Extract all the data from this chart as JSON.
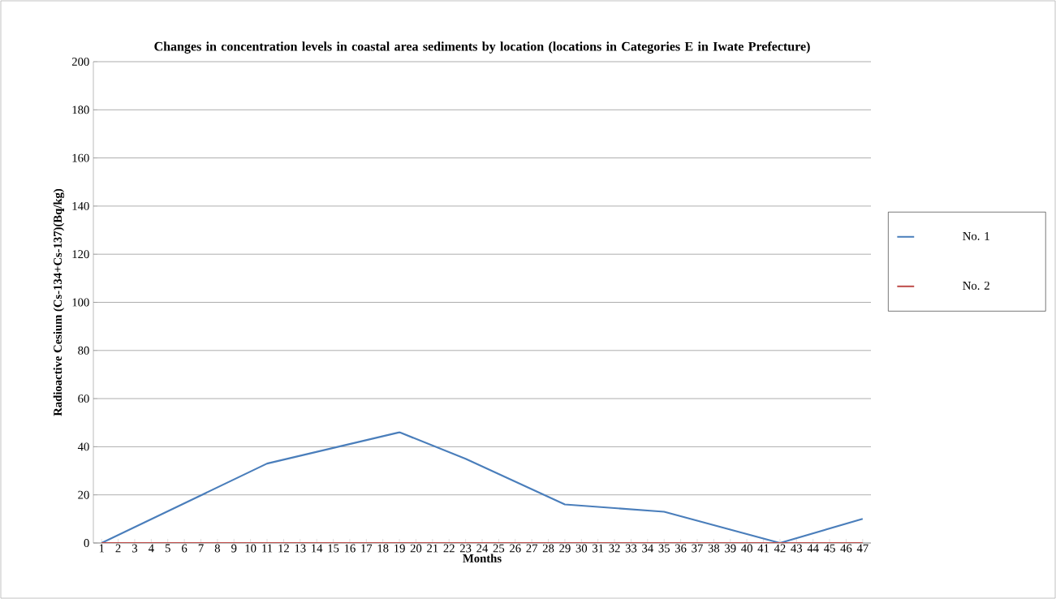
{
  "chart_data": {
    "type": "line",
    "title": "Changes in concentration levels in coastal area sediments by location (locations in Categories E in Iwate Prefecture)",
    "xlabel": "Months",
    "ylabel": "Radioactive Cesium (Cs-134+Cs-137)(Bq/kg)",
    "categories": [
      "1",
      "2",
      "3",
      "4",
      "5",
      "6",
      "7",
      "8",
      "9",
      "10",
      "11",
      "12",
      "13",
      "14",
      "15",
      "16",
      "17",
      "18",
      "19",
      "20",
      "21",
      "22",
      "23",
      "24",
      "25",
      "26",
      "27",
      "28",
      "29",
      "30",
      "31",
      "32",
      "33",
      "34",
      "35",
      "36",
      "37",
      "38",
      "39",
      "40",
      "41",
      "42",
      "43",
      "44",
      "45",
      "46",
      "47"
    ],
    "series": [
      {
        "name": "No. 1",
        "color": "#4a7ebb",
        "values": [
          0,
          null,
          null,
          null,
          null,
          null,
          null,
          null,
          null,
          null,
          33,
          null,
          null,
          null,
          null,
          null,
          null,
          null,
          46,
          null,
          null,
          null,
          35,
          null,
          null,
          null,
          null,
          null,
          16,
          null,
          null,
          null,
          null,
          null,
          13,
          null,
          null,
          null,
          null,
          null,
          null,
          0,
          null,
          null,
          null,
          null,
          10
        ]
      },
      {
        "name": "No. 2",
        "color": "#be4b48",
        "values": [
          0,
          null,
          null,
          null,
          null,
          null,
          null,
          null,
          null,
          null,
          0,
          null,
          null,
          null,
          null,
          null,
          null,
          null,
          0,
          null,
          null,
          null,
          0,
          null,
          null,
          null,
          null,
          null,
          0,
          null,
          null,
          null,
          null,
          null,
          0,
          null,
          null,
          null,
          null,
          null,
          null,
          0,
          null,
          null,
          null,
          null,
          0
        ]
      }
    ],
    "ylim": [
      0,
      200
    ],
    "yticks": [
      0,
      20,
      40,
      60,
      80,
      100,
      120,
      140,
      160,
      180,
      200
    ],
    "grid": "y",
    "legend": "right",
    "marker": "none",
    "line_style": "solid"
  }
}
